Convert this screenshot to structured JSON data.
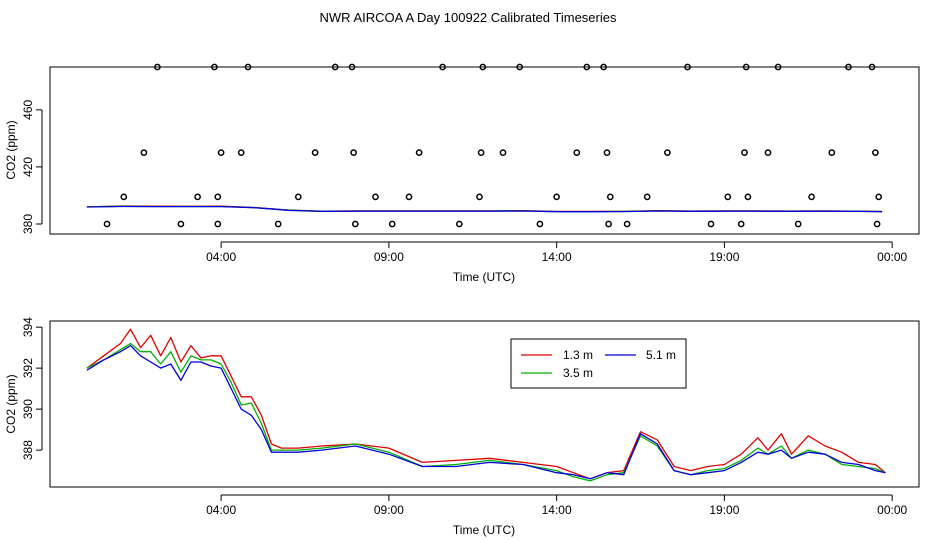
{
  "title": "NWR AIRCOA A  Day 100922  Calibrated Timeseries",
  "colors": {
    "s13": "#e00000",
    "s35": "#00b000",
    "s51": "#0000e0",
    "axis": "#000000"
  },
  "chart_data": [
    {
      "type": "line+scatter",
      "xlabel": "Time (UTC)",
      "ylabel": "CO2 (ppm)",
      "xlim": [
        -1.1,
        24.8
      ],
      "ylim": [
        373,
        490
      ],
      "xticks": [
        4,
        9,
        14,
        19,
        24
      ],
      "xtick_labels": [
        "04:00",
        "09:00",
        "14:00",
        "19:00",
        "00:00"
      ],
      "yticks": [
        380,
        420,
        460
      ],
      "ytick_labels": [
        "380",
        "420",
        "460"
      ],
      "scatter_points": {
        "x": [
          0.6,
          1.1,
          1.7,
          2.1,
          2.8,
          3.3,
          3.8,
          3.9,
          3.9,
          4.0,
          4.6,
          4.8,
          5.7,
          6.3,
          6.8,
          7.4,
          7.9,
          7.95,
          8.0,
          8.6,
          9.1,
          9.6,
          9.9,
          10.6,
          11.1,
          11.7,
          11.75,
          11.8,
          12.4,
          12.9,
          13.5,
          14.0,
          14.6,
          14.9,
          15.4,
          15.5,
          15.55,
          15.6,
          16.1,
          16.7,
          17.3,
          17.9,
          18.6,
          19.1,
          19.5,
          19.6,
          19.65,
          19.7,
          20.3,
          20.6,
          21.2,
          21.6,
          22.2,
          22.7,
          23.4,
          23.5,
          23.55,
          23.6
        ],
        "y": [
          380,
          399,
          430,
          490,
          380,
          399,
          490,
          380,
          399,
          430,
          430,
          490,
          380,
          399,
          430,
          490,
          490,
          430,
          380,
          399,
          380,
          399,
          430,
          490,
          380,
          399,
          430,
          490,
          430,
          490,
          380,
          399,
          430,
          490,
          490,
          430,
          380,
          399,
          380,
          399,
          430,
          490,
          380,
          399,
          380,
          430,
          490,
          399,
          430,
          490,
          380,
          399,
          430,
          490,
          490,
          430,
          380,
          399
        ]
      },
      "series": [
        {
          "name": "1.3 m",
          "x": [
            0,
            1,
            2,
            3,
            4,
            5,
            6,
            7,
            8,
            9,
            10,
            11,
            12,
            13,
            14,
            15,
            16,
            17,
            18,
            19,
            20,
            21,
            22,
            23,
            23.7
          ],
          "y": [
            392,
            392.6,
            392.5,
            392.4,
            392.5,
            391.6,
            389.8,
            389,
            389.2,
            389.2,
            389.2,
            389.2,
            389.2,
            389.3,
            388.8,
            388.8,
            388.9,
            389.3,
            389.1,
            389.2,
            389.2,
            389.1,
            389.2,
            389,
            388.8
          ]
        },
        {
          "name": "3.5 m",
          "x": [
            0,
            1,
            2,
            3,
            4,
            5,
            6,
            7,
            8,
            9,
            10,
            11,
            12,
            13,
            14,
            15,
            16,
            17,
            18,
            19,
            20,
            21,
            22,
            23,
            23.7
          ],
          "y": [
            392,
            392.4,
            392.3,
            392.3,
            392.3,
            391.5,
            389.7,
            388.9,
            389.1,
            389.1,
            389.1,
            389.1,
            389.1,
            389.2,
            388.7,
            388.7,
            388.8,
            389.2,
            389,
            389.1,
            389.1,
            389,
            389.1,
            388.9,
            388.7
          ]
        },
        {
          "name": "5.1 m",
          "x": [
            0,
            1,
            2,
            3,
            4,
            5,
            6,
            7,
            8,
            9,
            10,
            11,
            12,
            13,
            14,
            15,
            16,
            17,
            18,
            19,
            20,
            21,
            22,
            23,
            23.7
          ],
          "y": [
            391.9,
            392.3,
            392.2,
            392.2,
            392.2,
            391.4,
            389.6,
            388.8,
            389,
            389,
            389,
            389,
            389,
            389.1,
            388.6,
            388.6,
            388.7,
            389.1,
            388.9,
            389,
            389,
            388.9,
            389,
            388.8,
            388.6
          ]
        }
      ]
    },
    {
      "type": "line",
      "xlabel": "Time (UTC)",
      "ylabel": "CO2 (ppm)",
      "xlim": [
        -1.1,
        24.8
      ],
      "ylim": [
        386.2,
        394.3
      ],
      "xticks": [
        4,
        9,
        14,
        19,
        24
      ],
      "xtick_labels": [
        "04:00",
        "09:00",
        "14:00",
        "19:00",
        "00:00"
      ],
      "yticks": [
        388,
        390,
        392,
        394
      ],
      "ytick_labels": [
        "388",
        "390",
        "392",
        "394"
      ],
      "legend": {
        "position": "top-center",
        "entries": [
          "1.3 m",
          "5.1 m",
          "3.5 m"
        ]
      },
      "series": [
        {
          "name": "1.3 m",
          "color": "#e00000",
          "x": [
            0,
            0.5,
            1.0,
            1.3,
            1.6,
            1.9,
            2.2,
            2.5,
            2.8,
            3.1,
            3.4,
            3.7,
            4.0,
            4.3,
            4.6,
            4.9,
            5.2,
            5.5,
            5.8,
            6.3,
            7,
            8,
            9,
            10,
            11,
            12,
            13,
            14,
            14.5,
            15,
            15.5,
            16,
            16.5,
            17,
            17.5,
            18,
            18.5,
            19,
            19.5,
            20,
            20.3,
            20.7,
            21,
            21.5,
            22,
            22.5,
            23,
            23.5,
            23.8
          ],
          "y": [
            392,
            392.6,
            393.2,
            393.9,
            393.0,
            393.6,
            392.6,
            393.5,
            392.3,
            393.1,
            392.5,
            392.6,
            392.6,
            391.6,
            390.6,
            390.6,
            389.7,
            388.3,
            388.1,
            388.1,
            388.2,
            388.3,
            388.1,
            387.4,
            387.5,
            387.6,
            387.4,
            387.2,
            386.9,
            386.6,
            386.9,
            387.0,
            388.9,
            388.5,
            387.2,
            387.0,
            387.2,
            387.3,
            387.8,
            388.6,
            388.0,
            388.8,
            387.8,
            388.7,
            388.2,
            387.9,
            387.4,
            387.3,
            386.9
          ]
        },
        {
          "name": "3.5 m",
          "color": "#00b000",
          "x": [
            0,
            0.5,
            1.0,
            1.3,
            1.6,
            1.9,
            2.2,
            2.5,
            2.8,
            3.1,
            3.4,
            3.7,
            4.0,
            4.3,
            4.6,
            4.9,
            5.2,
            5.5,
            5.8,
            6.3,
            7,
            8,
            9,
            10,
            11,
            12,
            13,
            14,
            14.5,
            15,
            15.5,
            16,
            16.5,
            17,
            17.5,
            18,
            18.5,
            19,
            19.5,
            20,
            20.3,
            20.7,
            21,
            21.5,
            22,
            22.5,
            23,
            23.5,
            23.8
          ],
          "y": [
            392,
            392.4,
            392.9,
            393.2,
            392.8,
            392.8,
            392.2,
            392.8,
            391.8,
            392.6,
            392.4,
            392.4,
            392.2,
            391.3,
            390.2,
            390.3,
            389.3,
            388.0,
            388.0,
            388.0,
            388.1,
            388.3,
            387.9,
            387.2,
            387.3,
            387.5,
            387.3,
            387.0,
            386.7,
            386.5,
            386.8,
            386.9,
            388.7,
            388.2,
            387.0,
            386.8,
            387.0,
            387.1,
            387.5,
            388.1,
            387.8,
            388.2,
            387.6,
            388.0,
            387.8,
            387.3,
            387.2,
            387.1,
            386.9
          ]
        },
        {
          "name": "5.1 m",
          "color": "#0000e0",
          "x": [
            0,
            0.5,
            1.0,
            1.3,
            1.6,
            1.9,
            2.2,
            2.5,
            2.8,
            3.1,
            3.4,
            3.7,
            4.0,
            4.3,
            4.6,
            4.9,
            5.2,
            5.5,
            5.8,
            6.3,
            7,
            8,
            9,
            10,
            11,
            12,
            13,
            14,
            14.5,
            15,
            15.5,
            16,
            16.5,
            17,
            17.5,
            18,
            18.5,
            19,
            19.5,
            20,
            20.3,
            20.7,
            21,
            21.5,
            22,
            22.5,
            23,
            23.5,
            23.8
          ],
          "y": [
            391.9,
            392.4,
            392.8,
            393.1,
            392.6,
            392.3,
            392.0,
            392.2,
            391.4,
            392.3,
            392.3,
            392.1,
            392.0,
            391.0,
            390.0,
            389.7,
            389.0,
            387.9,
            387.9,
            387.9,
            388.0,
            388.2,
            387.8,
            387.2,
            387.2,
            387.4,
            387.3,
            386.9,
            386.8,
            386.6,
            386.9,
            386.8,
            388.8,
            388.3,
            387.0,
            386.8,
            386.9,
            387.0,
            387.4,
            387.9,
            387.8,
            388.0,
            387.6,
            387.9,
            387.8,
            387.4,
            387.3,
            387.0,
            386.9
          ]
        }
      ]
    }
  ]
}
